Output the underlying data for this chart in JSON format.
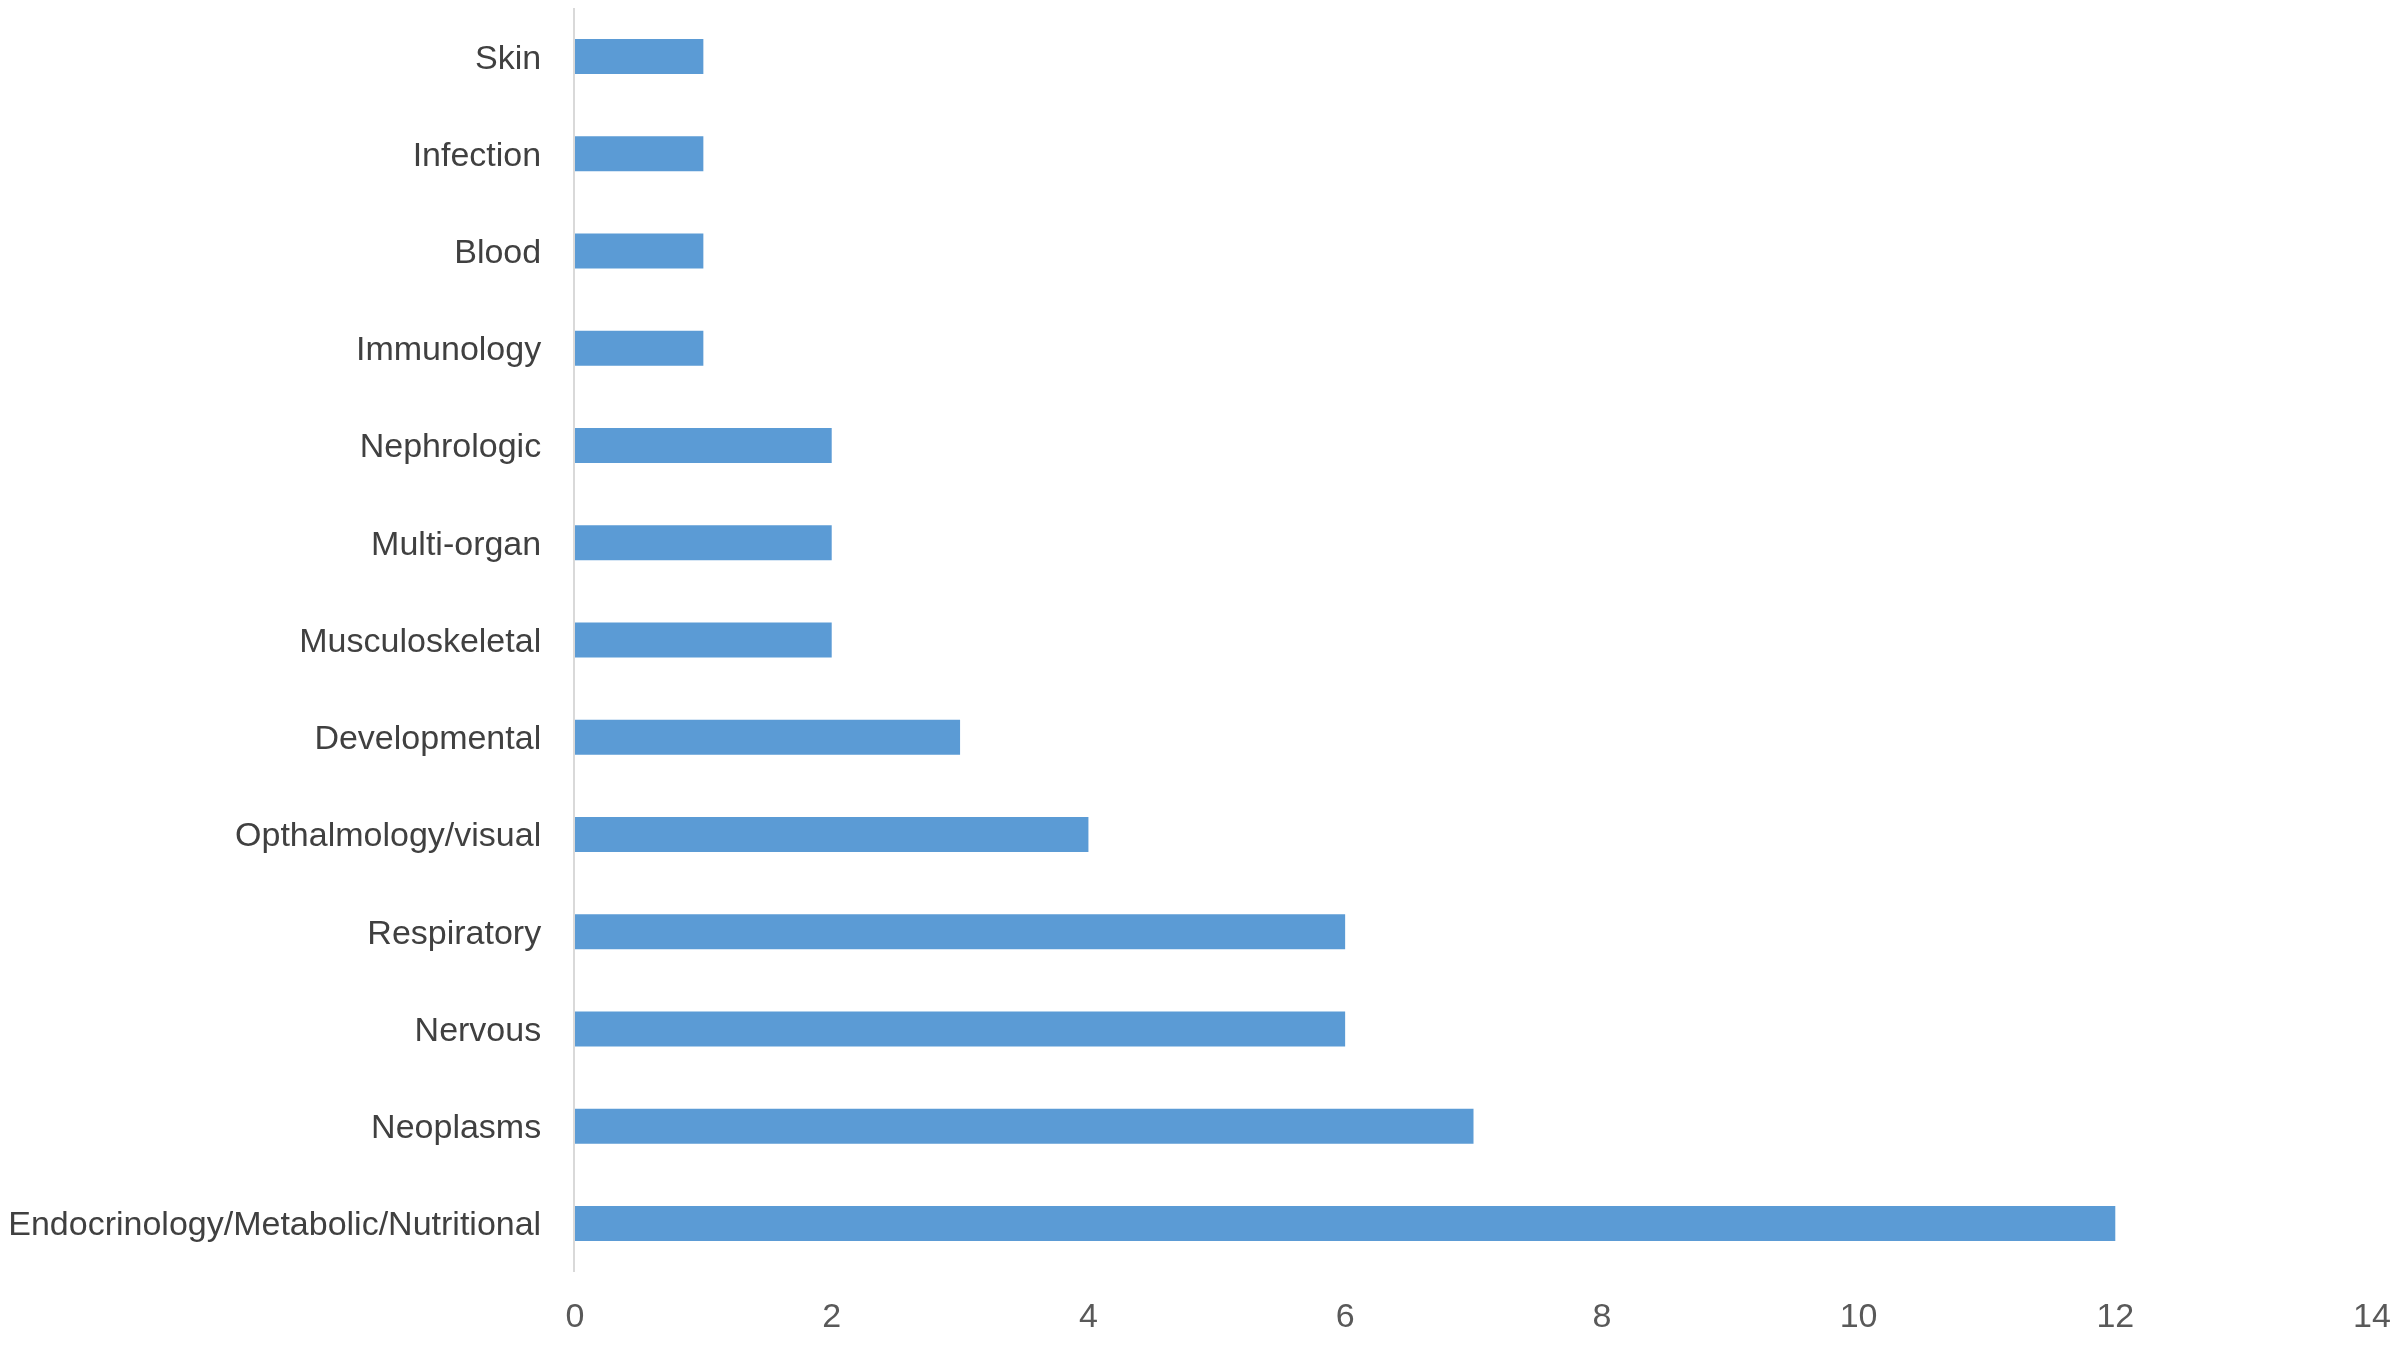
{
  "chart_data": {
    "type": "bar",
    "orientation": "horizontal",
    "categories": [
      "Skin",
      "Infection",
      "Blood",
      "Immunology",
      "Nephrologic",
      "Multi-organ",
      "Musculoskeletal",
      "Developmental",
      "Opthalmology/visual",
      "Respiratory",
      "Nervous",
      "Neoplasms",
      "Endocrinology/Metabolic/Nutritional"
    ],
    "values": [
      1,
      1,
      1,
      1,
      2,
      2,
      2,
      3,
      4,
      6,
      6,
      7,
      12
    ],
    "color": "#5b9bd5",
    "xlim": [
      0,
      14
    ],
    "xticks": [
      0,
      2,
      4,
      6,
      8,
      10,
      12,
      14
    ],
    "legend": false
  }
}
